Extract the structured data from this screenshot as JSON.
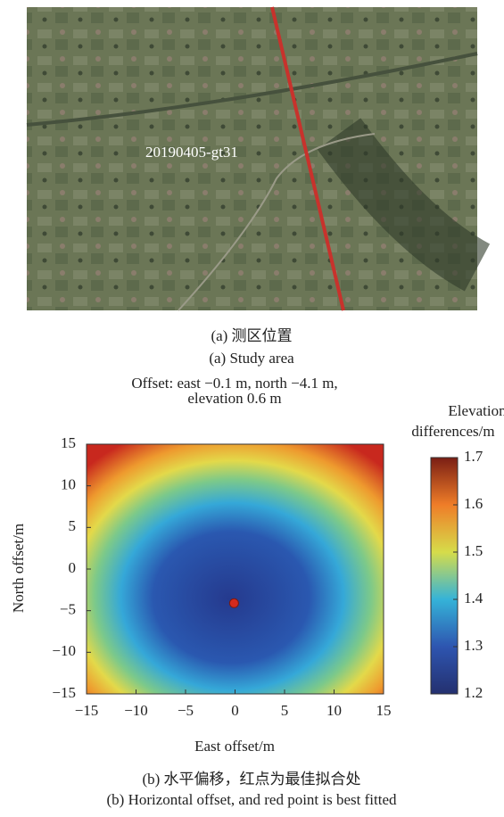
{
  "panel_a": {
    "image_label": "20190405-gt31",
    "caption_cn": "(a) 测区位置",
    "caption_en": "(a) Study area"
  },
  "chart_data": {
    "type": "heatmap",
    "title": [
      "Offset: east −0.1 m, north −4.1 m,",
      "elevation 0.6 m"
    ],
    "xlabel": "East offset/m",
    "ylabel": "North offset/m",
    "xlim": [
      -15,
      15
    ],
    "ylim": [
      -15,
      15
    ],
    "xticks": [
      {
        "value": -15,
        "label": "−15"
      },
      {
        "value": -10,
        "label": "−10"
      },
      {
        "value": -5,
        "label": "−5"
      },
      0,
      5,
      10,
      15
    ],
    "yticks": [
      {
        "value": -15,
        "label": "−15"
      },
      {
        "value": -10,
        "label": "−10"
      },
      {
        "value": -5,
        "label": "−5"
      },
      0,
      5,
      10,
      15
    ],
    "best_point": {
      "x": -0.1,
      "y": -4.1,
      "color": "#d42a1e"
    },
    "colorbar": {
      "title": [
        "Elevation",
        "differences/m"
      ],
      "lim": [
        1.2,
        1.7
      ],
      "ticks": [
        1.2,
        1.3,
        1.4,
        1.5,
        1.6,
        1.7
      ]
    }
  },
  "panel_b": {
    "caption_cn": "(b) 水平偏移，红点为最佳拟合处",
    "caption_en": "(b) Horizontal offset, and red point is best fitted"
  }
}
